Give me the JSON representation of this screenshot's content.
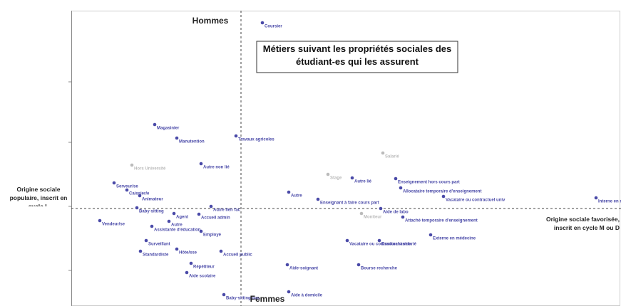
{
  "chart_data": {
    "type": "scatter",
    "title": "Métiers suivant les propriétés sociales des étudiant-es qui les assurent",
    "annotations": {
      "top": "Hommes",
      "bottom": "Femmes",
      "left": "Origine sociale populaire, inscrit en cycle L",
      "right": "Origine sociale favorisée, inscrit en cycle M ou D"
    },
    "xlim": [
      -2.38,
      5.33
    ],
    "ylim": [
      -1.37,
      2.78
    ],
    "points": [
      {
        "label": "Coursier",
        "x": 0.3,
        "y": 2.61,
        "color": "#4a4aa8"
      },
      {
        "label": "Magasinier",
        "x": -1.21,
        "y": 1.18,
        "color": "#4a4aa8"
      },
      {
        "label": "Manutention",
        "x": -0.9,
        "y": 0.99,
        "color": "#4a4aa8"
      },
      {
        "label": "Travaux agricoles",
        "x": -0.07,
        "y": 1.02,
        "color": "#4a4aa8"
      },
      {
        "label": "Autre non lié",
        "x": -0.56,
        "y": 0.63,
        "color": "#4a4aa8"
      },
      {
        "label": "Hors Université",
        "x": -1.53,
        "y": 0.61,
        "color": "#bbbbbb"
      },
      {
        "label": "Serveur/se",
        "x": -1.78,
        "y": 0.36,
        "color": "#4a4aa8"
      },
      {
        "label": "Caissier/e",
        "x": -1.6,
        "y": 0.26,
        "color": "#4a4aa8"
      },
      {
        "label": "Animateur",
        "x": -1.42,
        "y": 0.18,
        "color": "#4a4aa8"
      },
      {
        "label": "Baby-sitting",
        "x": -1.46,
        "y": 0.01,
        "color": "#4a4aa8"
      },
      {
        "label": "Vendeur/se",
        "x": -1.98,
        "y": -0.17,
        "color": "#4a4aa8"
      },
      {
        "label": "Agent",
        "x": -0.94,
        "y": -0.07,
        "color": "#4a4aa8"
      },
      {
        "label": "Autre",
        "x": -1.01,
        "y": -0.18,
        "color": "#4a4aa8"
      },
      {
        "label": "Assistante d'éducation",
        "x": -1.25,
        "y": -0.25,
        "color": "#4a4aa8"
      },
      {
        "label": "Surveillant",
        "x": -1.33,
        "y": -0.45,
        "color": "#4a4aa8"
      },
      {
        "label": "Accueil admin",
        "x": -0.59,
        "y": -0.08,
        "color": "#4a4aa8"
      },
      {
        "label": "Autre lien fac",
        "x": -0.42,
        "y": 0.03,
        "color": "#4a4aa8"
      },
      {
        "label": "Employé",
        "x": -0.56,
        "y": -0.32,
        "color": "#4a4aa8"
      },
      {
        "label": "Standardiste",
        "x": -1.41,
        "y": -0.6,
        "color": "#4a4aa8"
      },
      {
        "label": "Hôte/sse",
        "x": -0.9,
        "y": -0.57,
        "color": "#4a4aa8"
      },
      {
        "label": "Accueil public",
        "x": -0.28,
        "y": -0.6,
        "color": "#4a4aa8"
      },
      {
        "label": "Répétiteur",
        "x": -0.7,
        "y": -0.77,
        "color": "#4a4aa8"
      },
      {
        "label": "Aide scolaire",
        "x": -0.76,
        "y": -0.9,
        "color": "#4a4aa8"
      },
      {
        "label": "Baby-sitting occ.",
        "x": -0.24,
        "y": -1.21,
        "color": "#4a4aa8"
      },
      {
        "label": "Autre",
        "x": 0.67,
        "y": 0.23,
        "color": "#4a4aa8"
      },
      {
        "label": "Stage",
        "x": 1.22,
        "y": 0.48,
        "color": "#bbbbbb"
      },
      {
        "label": "Autre lié",
        "x": 1.56,
        "y": 0.43,
        "color": "#4a4aa8"
      },
      {
        "label": "Enseignement hors cours part",
        "x": 2.17,
        "y": 0.42,
        "color": "#4a4aa8"
      },
      {
        "label": "Allocataire temporaire d'enseignement",
        "x": 2.24,
        "y": 0.29,
        "color": "#4a4aa8"
      },
      {
        "label": "Enseignant à faire cours part",
        "x": 1.08,
        "y": 0.13,
        "color": "#4a4aa8"
      },
      {
        "label": "Vacataire ou contractuel univ",
        "x": 2.84,
        "y": 0.17,
        "color": "#4a4aa8"
      },
      {
        "label": "Aide de labo",
        "x": 1.96,
        "y": 0.0,
        "color": "#4a4aa8"
      },
      {
        "label": "Moniteur",
        "x": 1.69,
        "y": -0.07,
        "color": "#bbbbbb"
      },
      {
        "label": "Attaché temporaire d'enseignement",
        "x": 2.27,
        "y": -0.12,
        "color": "#4a4aa8"
      },
      {
        "label": "Interne en médecine",
        "x": 4.98,
        "y": 0.15,
        "color": "#4a4aa8"
      },
      {
        "label": "Externe en médecine",
        "x": 2.66,
        "y": -0.37,
        "color": "#4a4aa8"
      },
      {
        "label": "Vacataire ou contractuel autre",
        "x": 1.49,
        "y": -0.45,
        "color": "#4a4aa8"
      },
      {
        "label": "Doctorant salarié",
        "x": 1.94,
        "y": -0.45,
        "color": "#4a4aa8"
      },
      {
        "label": "Aide-soignant",
        "x": 0.65,
        "y": -0.79,
        "color": "#4a4aa8"
      },
      {
        "label": "Bourse recherche",
        "x": 1.65,
        "y": -0.79,
        "color": "#4a4aa8"
      },
      {
        "label": "Aide à domicile",
        "x": 0.67,
        "y": -1.17,
        "color": "#4a4aa8"
      },
      {
        "label": "Salarié",
        "x": 1.99,
        "y": 0.78,
        "color": "#bbbbbb"
      }
    ]
  }
}
